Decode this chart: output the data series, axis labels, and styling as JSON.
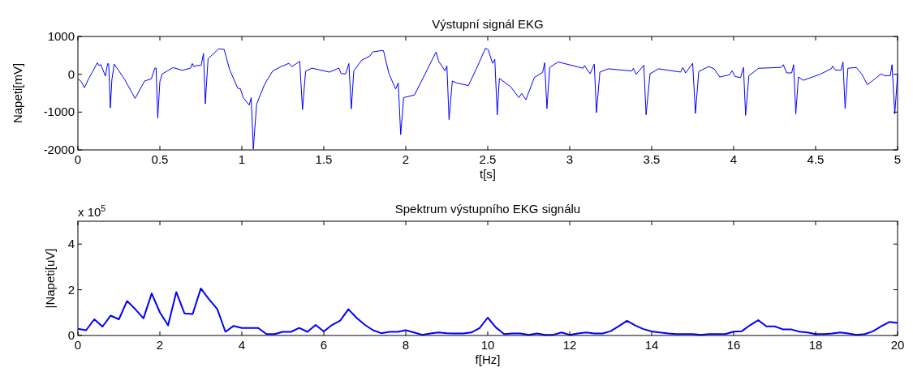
{
  "chart_data": [
    {
      "type": "line",
      "title": "Výstupní signál EKG",
      "xlabel": "t[s]",
      "ylabel": "Napeti[mV]",
      "xlim": [
        0,
        5
      ],
      "ylim": [
        -2000,
        1000
      ],
      "xticks": [
        0,
        0.5,
        1,
        1.5,
        2,
        2.5,
        3,
        3.5,
        4,
        4.5,
        5
      ],
      "yticks": [
        -2000,
        -1000,
        0,
        1000
      ],
      "series": [
        {
          "color": "#0000ff",
          "x": [
            0,
            0.02,
            0.04,
            0.061,
            0.119,
            0.128,
            0.14,
            0.168,
            0.181,
            0.188,
            0.198,
            0.207,
            0.221,
            0.283,
            0.349,
            0.407,
            0.448,
            0.469,
            0.477,
            0.487,
            0.5,
            0.514,
            0.58,
            0.637,
            0.687,
            0.698,
            0.708,
            0.724,
            0.752,
            0.766,
            0.777,
            0.794,
            0.859,
            0.892,
            0.925,
            0.975,
            0.991,
            1.008,
            1.045,
            1.057,
            1.07,
            1.09,
            1.139,
            1.189,
            1.238,
            1.287,
            1.304,
            1.353,
            1.37,
            1.389,
            1.427,
            1.534,
            1.592,
            1.605,
            1.633,
            1.653,
            1.668,
            1.683,
            1.732,
            1.781,
            1.798,
            1.847,
            1.864,
            1.897,
            1.938,
            1.954,
            1.969,
            1.987,
            2.053,
            2.111,
            2.168,
            2.185,
            2.201,
            2.239,
            2.251,
            2.264,
            2.284,
            2.308,
            2.382,
            2.44,
            2.486,
            2.503,
            2.529,
            2.543,
            2.558,
            2.571,
            2.639,
            2.69,
            2.707,
            2.733,
            2.784,
            2.835,
            2.847,
            2.861,
            2.878,
            2.929,
            3.082,
            3.09,
            3.124,
            3.15,
            3.163,
            3.184,
            3.235,
            3.379,
            3.388,
            3.405,
            3.452,
            3.466,
            3.49,
            3.541,
            3.677,
            3.69,
            3.707,
            3.75,
            3.767,
            3.787,
            3.847,
            3.881,
            3.915,
            3.974,
            3.991,
            4.008,
            4.042,
            4.06,
            4.073,
            4.093,
            4.153,
            4.289,
            4.303,
            4.323,
            4.354,
            4.366,
            4.379,
            4.395,
            4.425,
            4.527,
            4.595,
            4.604,
            4.621,
            4.655,
            4.667,
            4.68,
            4.697,
            4.748,
            4.782,
            4.816,
            4.859,
            4.901,
            4.918,
            4.956,
            4.966,
            4.983,
            5
          ],
          "values": [
            -120,
            -190,
            -355,
            -156,
            305,
            234,
            255,
            -50,
            284,
            270,
            -887,
            -156,
            270,
            -120,
            -638,
            -177,
            -120,
            163,
            163,
            -1156,
            -191,
            7,
            177,
            106,
            163,
            284,
            199,
            234,
            234,
            553,
            -780,
            411,
            674,
            660,
            128,
            -369,
            -383,
            -617,
            -816,
            -617,
            -1979,
            -794,
            -262,
            92,
            199,
            291,
            199,
            340,
            -936,
            78,
            163,
            57,
            163,
            21,
            7,
            284,
            -915,
            92,
            376,
            482,
            589,
            624,
            624,
            21,
            -390,
            -227,
            -1596,
            -617,
            -546,
            -50,
            447,
            589,
            340,
            92,
            220,
            -1199,
            -177,
            -227,
            -298,
            234,
            688,
            652,
            290,
            399,
            -1072,
            -109,
            -326,
            -616,
            -507,
            -674,
            -87,
            51,
            304,
            -906,
            181,
            326,
            159,
            232,
            14,
            268,
            -1014,
            58,
            145,
            87,
            159,
            0,
            239,
            -1072,
            14,
            145,
            58,
            181,
            36,
            290,
            -1036,
            72,
            203,
            145,
            -72,
            -14,
            94,
            -58,
            -87,
            181,
            -1087,
            -36,
            159,
            181,
            254,
            36,
            36,
            254,
            -1051,
            -72,
            -159,
            0,
            145,
            217,
            109,
            109,
            326,
            -906,
            159,
            181,
            0,
            -275,
            -130,
            14,
            -36,
            -36,
            254,
            -1051,
            0
          ]
        }
      ]
    },
    {
      "type": "line",
      "title": "Spektrum výstupního EKG signálu",
      "xlabel": "f[Hz]",
      "ylabel": "|Napeti[uV]",
      "annotations": [
        "x 10$^{5}$"
      ],
      "xlim": [
        0,
        20
      ],
      "ylim": [
        0,
        5
      ],
      "xticks": [
        0,
        2,
        4,
        6,
        8,
        10,
        12,
        14,
        16,
        18,
        20
      ],
      "yticks": [
        0,
        2,
        4
      ],
      "series": [
        {
          "color": "#0000ff",
          "x": [
            0,
            0.2,
            0.4,
            0.6,
            0.8,
            1,
            1.2,
            1.4,
            1.6,
            1.8,
            2,
            2.2,
            2.4,
            2.6,
            2.8,
            3,
            3.2,
            3.4,
            3.6,
            3.8,
            4,
            4.2,
            4.4,
            4.6,
            4.8,
            5,
            5.2,
            5.4,
            5.6,
            5.8,
            6,
            6.2,
            6.4,
            6.6,
            6.8,
            7,
            7.2,
            7.4,
            7.6,
            7.8,
            8,
            8.2,
            8.4,
            8.6,
            8.8,
            9,
            9.2,
            9.4,
            9.6,
            9.8,
            10,
            10.2,
            10.4,
            10.6,
            10.8,
            11,
            11.2,
            11.4,
            11.6,
            11.8,
            12,
            12.2,
            12.4,
            12.6,
            12.8,
            13,
            13.2,
            13.4,
            13.6,
            13.8,
            14,
            14.2,
            14.4,
            14.6,
            14.8,
            15,
            15.2,
            15.4,
            15.6,
            15.8,
            16,
            16.2,
            16.4,
            16.6,
            16.8,
            17,
            17.2,
            17.4,
            17.6,
            17.8,
            18,
            18.2,
            18.4,
            18.6,
            18.8,
            19,
            19.2,
            19.4,
            19.6,
            19.8,
            20
          ],
          "values": [
            0.29,
            0.23,
            0.71,
            0.39,
            0.87,
            0.71,
            1.51,
            1.15,
            0.75,
            1.84,
            1.01,
            0.44,
            1.9,
            0.97,
            0.94,
            2.06,
            1.58,
            1.16,
            0.16,
            0.42,
            0.33,
            0.33,
            0.33,
            0.06,
            0.06,
            0.16,
            0.16,
            0.33,
            0.16,
            0.46,
            0.18,
            0.46,
            0.65,
            1.15,
            0.77,
            0.47,
            0.23,
            0.1,
            0.16,
            0.16,
            0.23,
            0.13,
            0.03,
            0.09,
            0.13,
            0.1,
            0.09,
            0.09,
            0.13,
            0.32,
            0.78,
            0.35,
            0.06,
            0.09,
            0.09,
            0.03,
            0.09,
            0.03,
            0.03,
            0.13,
            0.03,
            0.09,
            0.13,
            0.09,
            0.09,
            0.19,
            0.41,
            0.64,
            0.44,
            0.28,
            0.18,
            0.13,
            0.09,
            0.06,
            0.06,
            0.06,
            0.03,
            0.06,
            0.06,
            0.06,
            0.17,
            0.19,
            0.45,
            0.67,
            0.4,
            0.4,
            0.27,
            0.27,
            0.17,
            0.13,
            0.06,
            0.06,
            0.09,
            0.13,
            0.09,
            0.03,
            0.06,
            0.18,
            0.4,
            0.59,
            0.55
          ]
        }
      ]
    }
  ]
}
